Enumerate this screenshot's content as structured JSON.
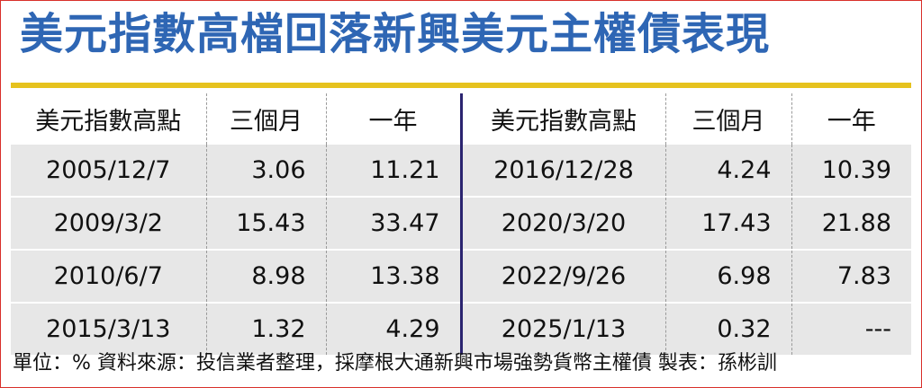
{
  "title": "美元指數高檔回落新興美元主權債表現",
  "header": {
    "left_date": "美元指數高點",
    "left_3m": "三個月",
    "left_1y": "一年",
    "right_date": "美元指數高點",
    "right_3m": "三個月",
    "right_1y": "一年"
  },
  "rows": [
    {
      "left_date": "2005/12/7",
      "left_3m": "3.06",
      "left_1y": "11.21",
      "right_date": "2016/12/28",
      "right_3m": "4.24",
      "right_1y": "10.39"
    },
    {
      "left_date": "2009/3/2",
      "left_3m": "15.43",
      "left_1y": "33.47",
      "right_date": "2020/3/20",
      "right_3m": "17.43",
      "right_1y": "21.88"
    },
    {
      "left_date": "2010/6/7",
      "left_3m": "8.98",
      "left_1y": "13.38",
      "right_date": "2022/9/26",
      "right_3m": "6.98",
      "right_1y": "7.83"
    },
    {
      "left_date": "2015/3/13",
      "left_3m": "1.32",
      "left_1y": "4.29",
      "right_date": "2025/1/13",
      "right_3m": "0.32",
      "right_1y": "---"
    }
  ],
  "footer": "單位：%  資料來源：投信業者整理，採摩根大通新興市場強勢貨幣主權債  製表：孫彬訓",
  "colors": {
    "title": "#2e66b4",
    "rule": "#e6c21e",
    "row_bg": "#e7e7e7",
    "divider": "#2b2470",
    "frame": "#d9302b"
  }
}
